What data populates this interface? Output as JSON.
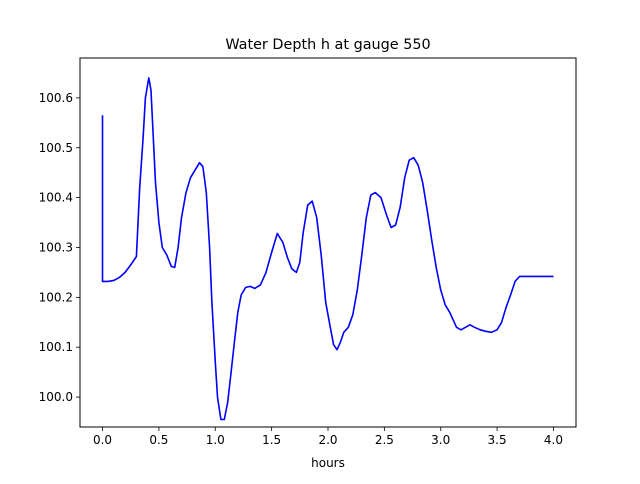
{
  "chart_data": {
    "type": "line",
    "title": "Water Depth h at gauge 550",
    "xlabel": "hours",
    "ylabel": "",
    "xlim": [
      -0.2,
      4.2
    ],
    "ylim": [
      99.94,
      100.68
    ],
    "xticks": [
      0.0,
      0.5,
      1.0,
      1.5,
      2.0,
      2.5,
      3.0,
      3.5,
      4.0
    ],
    "xtick_labels": [
      "0.0",
      "0.5",
      "1.0",
      "1.5",
      "2.0",
      "2.5",
      "3.0",
      "3.5",
      "4.0"
    ],
    "yticks": [
      100.0,
      100.1,
      100.2,
      100.3,
      100.4,
      100.5,
      100.6
    ],
    "ytick_labels": [
      "100.0",
      "100.1",
      "100.2",
      "100.3",
      "100.4",
      "100.5",
      "100.6"
    ],
    "grid": false,
    "colors": {
      "line": "#0000ff",
      "axes": "#000000",
      "background": "#ffffff"
    },
    "series": [
      {
        "x": [
          0.0,
          0.0,
          0.05,
          0.1,
          0.15,
          0.2,
          0.25,
          0.3,
          0.33,
          0.36,
          0.38,
          0.41,
          0.43,
          0.45,
          0.47,
          0.5,
          0.53,
          0.57,
          0.61,
          0.64,
          0.67,
          0.7,
          0.74,
          0.78,
          0.82,
          0.86,
          0.89,
          0.92,
          0.95,
          0.97,
          1.0,
          1.02,
          1.05,
          1.08,
          1.11,
          1.14,
          1.17,
          1.2,
          1.23,
          1.27,
          1.31,
          1.35,
          1.4,
          1.45,
          1.5,
          1.55,
          1.6,
          1.64,
          1.68,
          1.72,
          1.75,
          1.78,
          1.82,
          1.86,
          1.9,
          1.94,
          1.98,
          2.02,
          2.05,
          2.08,
          2.11,
          2.14,
          2.18,
          2.22,
          2.26,
          2.3,
          2.34,
          2.38,
          2.42,
          2.47,
          2.52,
          2.56,
          2.6,
          2.64,
          2.68,
          2.72,
          2.76,
          2.8,
          2.84,
          2.88,
          2.92,
          2.96,
          3.0,
          3.04,
          3.08,
          3.11,
          3.14,
          3.18,
          3.22,
          3.26,
          3.3,
          3.35,
          3.4,
          3.45,
          3.5,
          3.54,
          3.58,
          3.62,
          3.66,
          3.7,
          3.74,
          3.78,
          3.82,
          3.86,
          3.9,
          3.94,
          3.98,
          4.0
        ],
        "y": [
          100.565,
          100.232,
          100.232,
          100.234,
          100.24,
          100.25,
          100.265,
          100.282,
          100.42,
          100.52,
          100.6,
          100.64,
          100.615,
          100.52,
          100.43,
          100.35,
          100.3,
          100.285,
          100.262,
          100.26,
          100.3,
          100.36,
          100.41,
          100.44,
          100.455,
          100.47,
          100.462,
          100.41,
          100.3,
          100.19,
          100.07,
          100.0,
          99.955,
          99.955,
          99.99,
          100.05,
          100.11,
          100.17,
          100.205,
          100.22,
          100.222,
          100.218,
          100.225,
          100.25,
          100.29,
          100.328,
          100.31,
          100.28,
          100.257,
          100.25,
          100.27,
          100.33,
          100.385,
          100.393,
          100.36,
          100.285,
          100.19,
          100.14,
          100.105,
          100.095,
          100.11,
          100.13,
          100.14,
          100.165,
          100.215,
          100.285,
          100.36,
          100.405,
          100.41,
          100.4,
          100.365,
          100.34,
          100.345,
          100.38,
          100.44,
          100.475,
          100.48,
          100.465,
          100.43,
          100.375,
          100.315,
          100.26,
          100.215,
          100.185,
          100.17,
          100.155,
          100.14,
          100.135,
          100.14,
          100.145,
          100.14,
          100.135,
          100.132,
          100.13,
          100.135,
          100.15,
          100.18,
          100.205,
          100.232,
          100.242,
          100.242,
          100.242,
          100.242,
          100.242,
          100.242,
          100.242,
          100.242,
          100.242
        ]
      }
    ]
  }
}
